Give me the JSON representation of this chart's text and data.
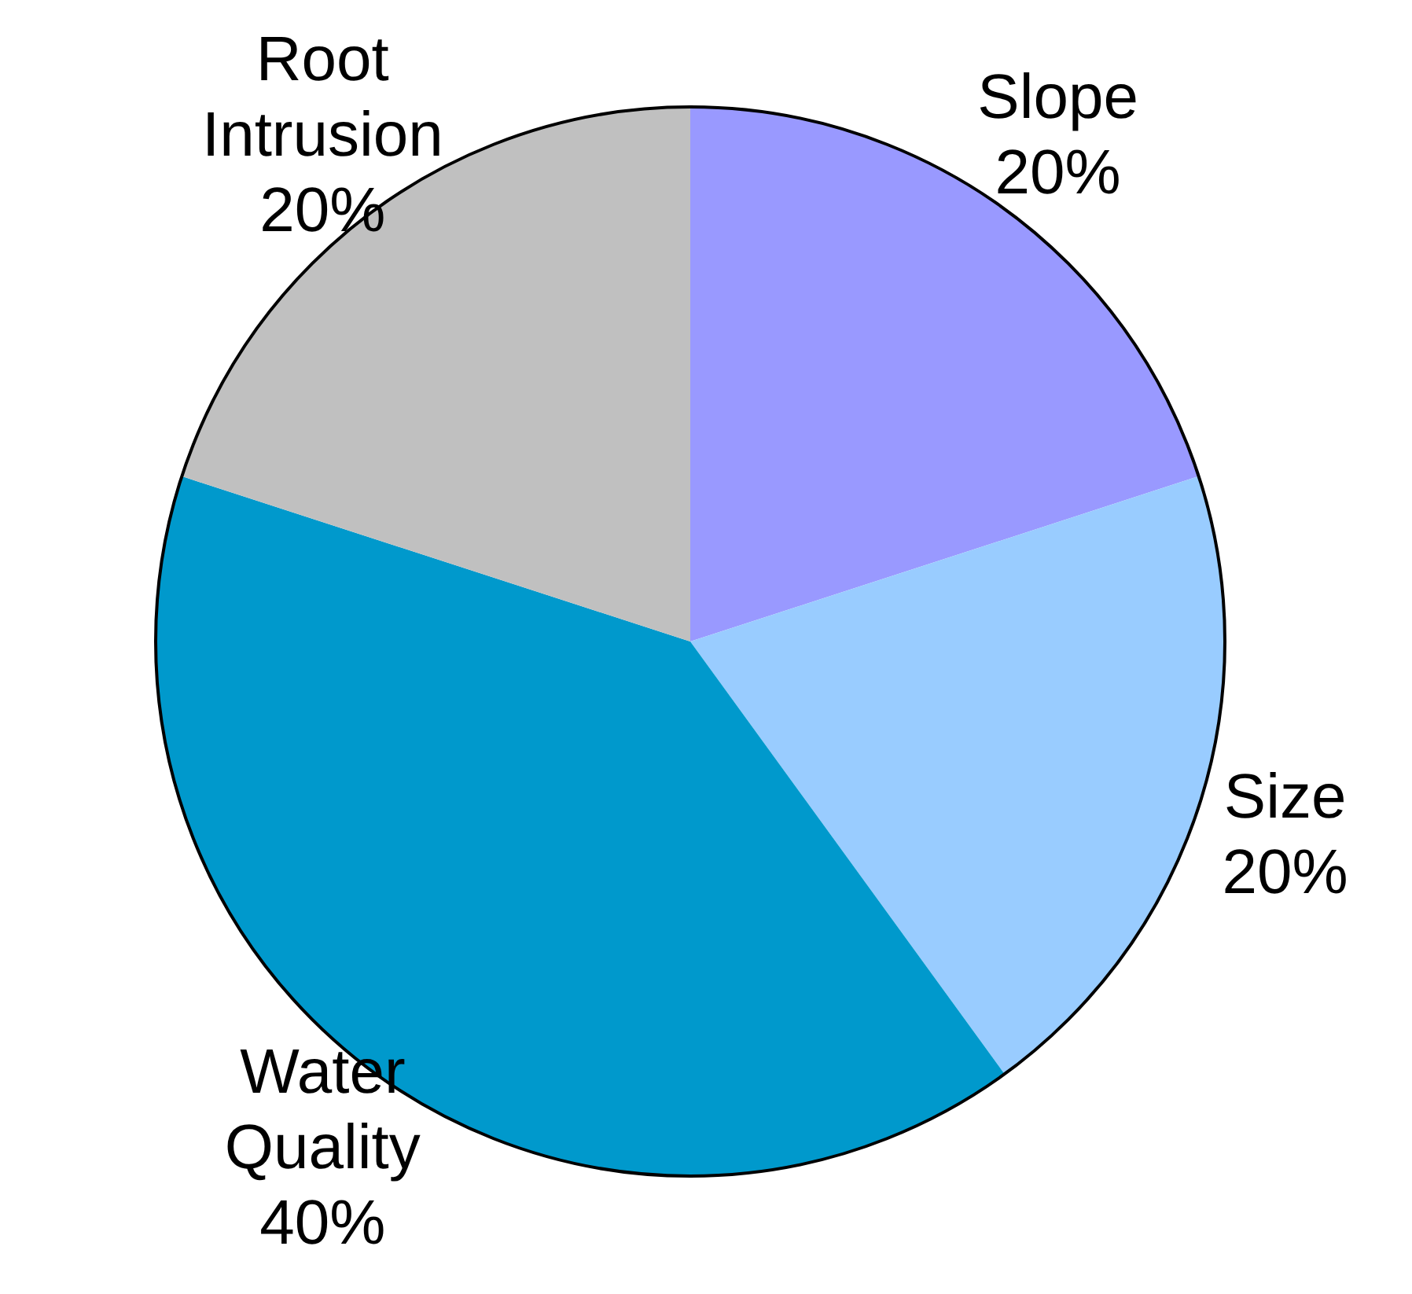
{
  "chart_data": {
    "type": "pie",
    "categories": [
      "Slope",
      "Size",
      "Water Quality",
      "Root Intrusion"
    ],
    "values": [
      20,
      20,
      40,
      20
    ],
    "value_labels": [
      "20%",
      "20%",
      "40%",
      "20%"
    ],
    "colors": [
      "#9999ff",
      "#99ccff",
      "#0099cc",
      "#c0c0c0"
    ],
    "legend": false
  }
}
